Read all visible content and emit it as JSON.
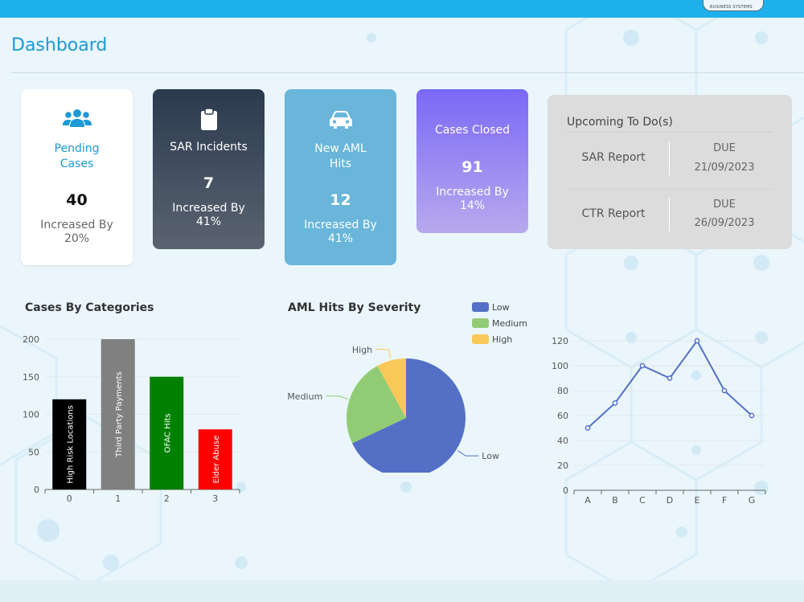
{
  "header": {
    "brand_small": "BUSINESS SYSTEMS"
  },
  "page": {
    "title": "Dashboard"
  },
  "cards": {
    "pending": {
      "label_line1": "Pending",
      "label_line2": "Cases",
      "value": "40",
      "inc_line1": "Increased By",
      "inc_line2": "20%",
      "icon": "users-icon"
    },
    "sar": {
      "label": "SAR Incidents",
      "value": "7",
      "inc_line1": "Increased By",
      "inc_line2": "41%",
      "icon": "clipboard-icon"
    },
    "aml": {
      "label_line1": "New AML",
      "label_line2": "Hits",
      "value": "12",
      "inc_line1": "Increased By",
      "inc_line2": "41%",
      "icon": "car-icon"
    },
    "closed": {
      "label": "Cases Closed",
      "value": "91",
      "inc_line1": "Increased By",
      "inc_line2": "14%"
    }
  },
  "todo": {
    "title": "Upcoming To Do(s)",
    "items": [
      {
        "name": "SAR Report",
        "status": "DUE",
        "date": "21/09/2023"
      },
      {
        "name": "CTR Report",
        "status": "DUE",
        "date": "26/09/2023"
      }
    ]
  },
  "colors": {
    "accent": "#1b9ad6",
    "topbar": "#1eb0ec",
    "low": "#5470c6",
    "medium": "#91cc75",
    "high": "#fac858",
    "line": "#5470c6"
  },
  "chart_data": [
    {
      "type": "bar",
      "title": "Cases By Categories",
      "categories": [
        "0",
        "1",
        "2",
        "3"
      ],
      "bar_labels": [
        "High Risk Locations",
        "Third Party Payments",
        "OFAC Hits",
        "Elder Abuse"
      ],
      "values": [
        120,
        200,
        150,
        80
      ],
      "bar_colors": [
        "#000000",
        "#808080",
        "#008000",
        "#ff0000"
      ],
      "ylim": [
        0,
        200
      ],
      "yticks": [
        0,
        50,
        100,
        150,
        200
      ]
    },
    {
      "type": "pie",
      "title": "AML Hits By Severity",
      "categories": [
        "Low",
        "Medium",
        "High"
      ],
      "values": [
        68,
        24,
        8
      ],
      "legend": "top-right"
    },
    {
      "type": "line",
      "title": "",
      "categories": [
        "A",
        "B",
        "C",
        "D",
        "E",
        "F",
        "G"
      ],
      "values": [
        50,
        70,
        100,
        90,
        120,
        80,
        60
      ],
      "ylim": [
        0,
        120
      ],
      "yticks": [
        0,
        20,
        40,
        60,
        80,
        100,
        120
      ]
    }
  ]
}
